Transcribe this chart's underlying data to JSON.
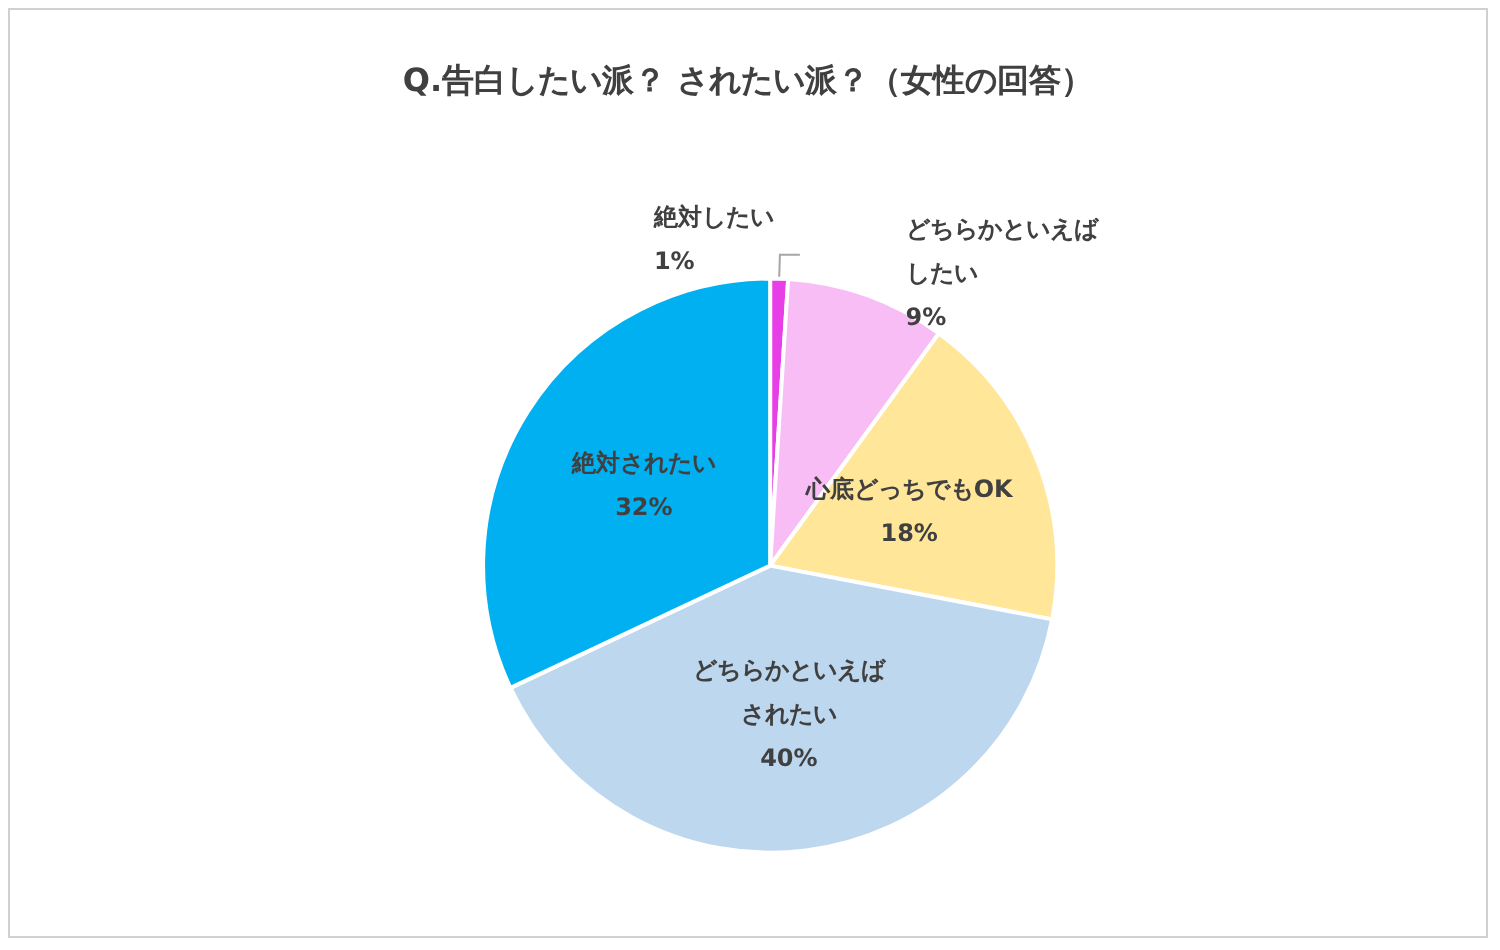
{
  "chart_data": {
    "type": "pie",
    "title": "Q.告白したい派？ されたい派？（女性の回答）",
    "categories": [
      "絶対したい",
      "どちらかといえばしたい",
      "心底どっちでもOK",
      "どちらかといえばされたい",
      "絶対されたい"
    ],
    "values": [
      1,
      9,
      18,
      40,
      32
    ],
    "value_labels": [
      "1%",
      "9%",
      "18%",
      "40%",
      "32%"
    ],
    "colors": [
      "#e83ee8",
      "#f8bdf4",
      "#ffe699",
      "#bdd7ee",
      "#00b0f0"
    ],
    "legend": false
  }
}
